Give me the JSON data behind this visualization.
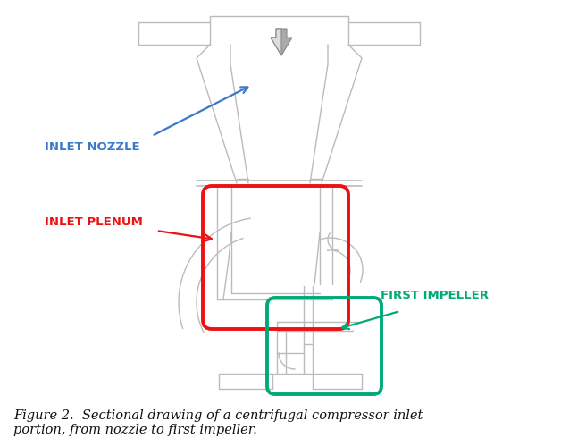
{
  "fig_width": 6.28,
  "fig_height": 5.0,
  "dpi": 100,
  "background_color": "#ffffff",
  "caption_line1": "Figure 2.  Sectional drawing of a centrifugal compressor inlet",
  "caption_line2": "portion, from nozzle to first impeller.",
  "caption_fontsize": 10.5,
  "label_inlet_nozzle": "INLET NOZZLE",
  "label_inlet_plenum": "INLET PLENUM",
  "label_first_impeller": "FIRST IMPELLER",
  "color_inlet_nozzle": "#3B78C9",
  "color_inlet_plenum": "#EE1111",
  "color_first_impeller": "#00AA77",
  "color_drawing": "#BBBBBB",
  "color_drawing_med": "#999999",
  "color_drawing_dark": "#777777"
}
